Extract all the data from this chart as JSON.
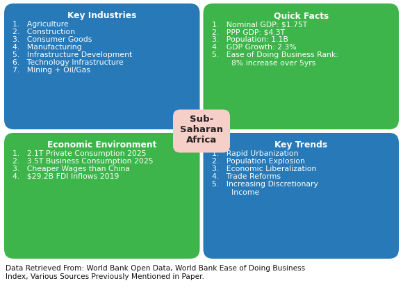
{
  "title": "Sub-\nSaharan\nAfrica",
  "blue_color": "#2779B8",
  "green_color": "#3DB54A",
  "center_color": "#F5CFC8",
  "text_color_white": "#FFFFFF",
  "text_color_dark": "#222222",
  "caption_color": "#111111",
  "top_left_title": "Key Industries",
  "top_left_items": [
    "1.   Agriculture",
    "2.   Construction",
    "3.   Consumer Goods",
    "4.   Manufacturing",
    "5.   Infrastructure Development",
    "6.   Technology Infrastructure",
    "7.   Mining + Oil/Gas"
  ],
  "top_right_title": "Quick Facts",
  "top_right_items": [
    "1.   Nominal GDP: $1.75T",
    "2.   PPP GDP: $4.3T",
    "3.   Population: 1.1B",
    "4.   GDP Growth: 2.3%",
    "5.   Ease of Doing Business Rank:\n        8% increase over 5yrs"
  ],
  "bottom_left_title": "Economic Environment",
  "bottom_left_items": [
    "1.   2.1T Private Consumption 2025",
    "2.   3.5T Business Consumption 2025",
    "3.   Cheaper Wages than China",
    "4.   $29.2B FDI Inflows 2019"
  ],
  "bottom_right_title": "Key Trends",
  "bottom_right_items": [
    "1.   Rapid Urbanization",
    "2.   Population Explosion",
    "3.   Economic Liberalization",
    "4.   Trade Reforms",
    "5.   Increasing Discretionary\n        Income"
  ],
  "caption": "Data Retrieved From: World Bank Open Data, World Bank Ease of Doing Business\nIndex, Various Sources Previously Mentioned in Paper."
}
